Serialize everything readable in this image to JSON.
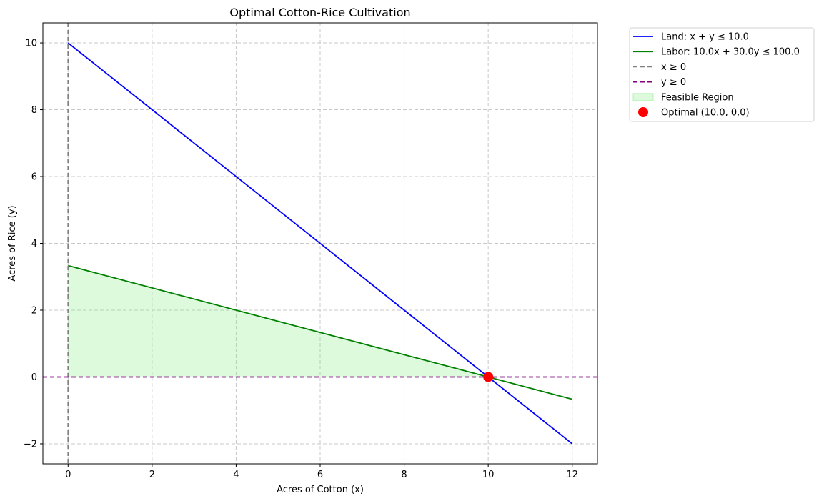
{
  "chart_data": {
    "type": "line",
    "title": "Optimal Cotton-Rice Cultivation",
    "xlabel": "Acres of Cotton (x)",
    "ylabel": "Acres of Rice (y)",
    "xlim": [
      -0.6,
      12.6
    ],
    "ylim": [
      -2.6,
      10.6
    ],
    "xticks": [
      0,
      2,
      4,
      6,
      8,
      10,
      12
    ],
    "yticks": [
      -2,
      0,
      2,
      4,
      6,
      8,
      10
    ],
    "xtick_labels": [
      "0",
      "2",
      "4",
      "6",
      "8",
      "10",
      "12"
    ],
    "ytick_labels": [
      "−2",
      "0",
      "2",
      "4",
      "6",
      "8",
      "10"
    ],
    "grid": true,
    "legend_position": "outside-top-right",
    "series": [
      {
        "name": "Land: x + y ≤ 10.0",
        "kind": "line",
        "color": "#0000ff",
        "dash": "solid",
        "points": [
          [
            0,
            10
          ],
          [
            12,
            -2
          ]
        ]
      },
      {
        "name": "Labor: 10.0x + 30.0y ≤ 100.0",
        "kind": "line",
        "color": "#008000",
        "dash": "solid",
        "points": [
          [
            0,
            3.333
          ],
          [
            12,
            -0.667
          ]
        ]
      },
      {
        "name": "x ≥ 0",
        "kind": "vline",
        "color": "#808080",
        "dash": "dashed",
        "x": 0
      },
      {
        "name": "y ≥ 0",
        "kind": "hline",
        "color": "#800080",
        "dash": "dashed",
        "y": 0
      },
      {
        "name": "Feasible Region",
        "kind": "area",
        "color": "#90ee90",
        "opacity": 0.3,
        "points": [
          [
            0,
            0
          ],
          [
            0,
            3.333
          ],
          [
            10,
            0
          ]
        ]
      },
      {
        "name": "Optimal (10.0, 0.0)",
        "kind": "point",
        "color": "#ff0000",
        "x": 10,
        "y": 0
      }
    ]
  }
}
